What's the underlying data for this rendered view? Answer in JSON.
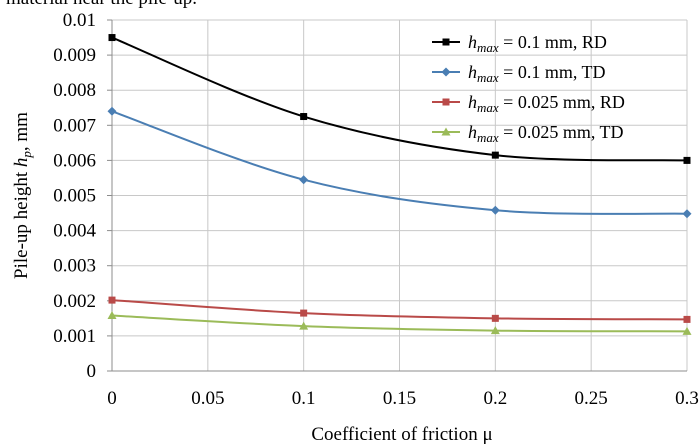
{
  "caption_fragment": "material near the pile-up.",
  "chart_data": {
    "type": "line",
    "xlabel": "Coefficient of friction μ",
    "ylabel": {
      "prefix": "Pile-up height ",
      "symbol": "h",
      "subscript": "p",
      "suffix": ", mm"
    },
    "xlim": [
      0,
      0.3
    ],
    "ylim": [
      0,
      0.01
    ],
    "xticks": [
      0,
      0.05,
      0.1,
      0.15,
      0.2,
      0.25,
      0.3
    ],
    "xtick_labels": [
      "0",
      "0.05",
      "0.1",
      "0.15",
      "0.2",
      "0.25",
      "0.3"
    ],
    "yticks": [
      0,
      0.001,
      0.002,
      0.003,
      0.004,
      0.005,
      0.006,
      0.007,
      0.008,
      0.009,
      0.01
    ],
    "ytick_labels": [
      "0",
      "0.001",
      "0.002",
      "0.003",
      "0.004",
      "0.005",
      "0.006",
      "0.007",
      "0.008",
      "0.009",
      "0.01"
    ],
    "grid": true,
    "legend_position": "top-right",
    "x": [
      0,
      0.1,
      0.2,
      0.3
    ],
    "series": [
      {
        "name": "hmax = 0.1 mm, RD",
        "legend": {
          "symbol": "h",
          "subscript": "max",
          "rest": " = 0.1 mm, RD"
        },
        "color": "#000000",
        "marker": "square",
        "values": [
          0.0095,
          0.00725,
          0.00615,
          0.006
        ]
      },
      {
        "name": "hmax = 0.1 mm, TD",
        "legend": {
          "symbol": "h",
          "subscript": "max",
          "rest": " = 0.1 mm, TD"
        },
        "color": "#4a7eb3",
        "marker": "diamond",
        "values": [
          0.0074,
          0.00545,
          0.00458,
          0.00448
        ]
      },
      {
        "name": "hmax = 0.025 mm, RD",
        "legend": {
          "symbol": "h",
          "subscript": "max",
          "rest": " = 0.025 mm, RD"
        },
        "color": "#b94a48",
        "marker": "square",
        "values": [
          0.00202,
          0.00165,
          0.0015,
          0.00147
        ]
      },
      {
        "name": "hmax = 0.025 mm, TD",
        "legend": {
          "symbol": "h",
          "subscript": "max",
          "rest": " = 0.025 mm, TD"
        },
        "color": "#9bbb59",
        "marker": "triangle",
        "values": [
          0.00158,
          0.00128,
          0.00115,
          0.00113
        ]
      }
    ]
  }
}
